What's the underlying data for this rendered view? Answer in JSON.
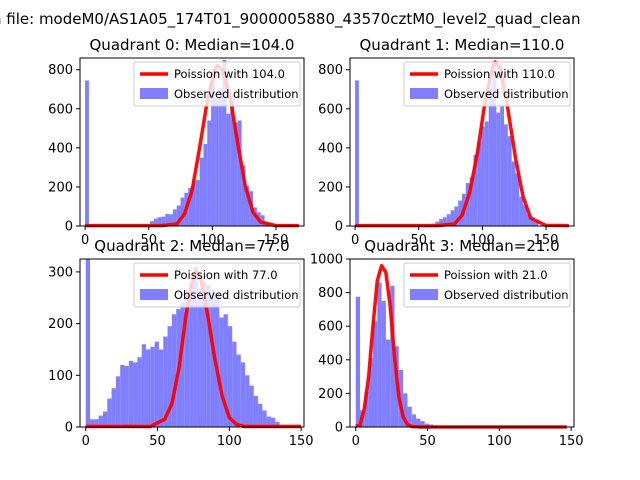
{
  "figure": {
    "suptitle": "n file: modeM0/AS1A05_174T01_9000005880_43570cztM0_level2_quad_clean"
  },
  "colors": {
    "hist": "#7f7fff",
    "fit": "#ff0000"
  },
  "chart_data": [
    {
      "type": "bar",
      "title": "Quadrant 0: Median=104.0",
      "xlim": [
        -4,
        172
      ],
      "ylim": [
        0,
        860
      ],
      "xticks": [
        0,
        50,
        100,
        150
      ],
      "yticks": [
        0,
        200,
        400,
        600,
        800
      ],
      "legend": {
        "position": "top-right",
        "entries": [
          "Poission with 104.0",
          "Observed distribution"
        ]
      },
      "hist_bins": [
        [
          0,
          3,
          745
        ],
        [
          51,
          54,
          25
        ],
        [
          54,
          57,
          38
        ],
        [
          57,
          60,
          45
        ],
        [
          60,
          63,
          48
        ],
        [
          63,
          66,
          62
        ],
        [
          66,
          69,
          60
        ],
        [
          69,
          72,
          85
        ],
        [
          72,
          75,
          105
        ],
        [
          75,
          78,
          145
        ],
        [
          78,
          81,
          170
        ],
        [
          81,
          84,
          195
        ],
        [
          84,
          87,
          232
        ],
        [
          87,
          90,
          235
        ],
        [
          90,
          93,
          350
        ],
        [
          93,
          96,
          420
        ],
        [
          96,
          99,
          540
        ],
        [
          99,
          102,
          790
        ],
        [
          102,
          105,
          655
        ],
        [
          105,
          108,
          705
        ],
        [
          108,
          111,
          850
        ],
        [
          111,
          114,
          575
        ],
        [
          114,
          117,
          655
        ],
        [
          117,
          120,
          530
        ],
        [
          120,
          123,
          540
        ],
        [
          123,
          126,
          310
        ],
        [
          126,
          129,
          205
        ],
        [
          129,
          132,
          178
        ],
        [
          132,
          135,
          95
        ],
        [
          135,
          138,
          70
        ],
        [
          138,
          141,
          55
        ],
        [
          141,
          144,
          20
        ]
      ],
      "fit_curve": {
        "label": "Poission with 104.0",
        "x": [
          0,
          60,
          72,
          78,
          84,
          90,
          96,
          102,
          104,
          108,
          114,
          120,
          126,
          132,
          138,
          150,
          168
        ],
        "y": [
          2,
          2,
          10,
          60,
          180,
          400,
          640,
          800,
          820,
          800,
          660,
          420,
          200,
          70,
          20,
          2,
          2
        ]
      }
    },
    {
      "type": "bar",
      "title": "Quadrant 1: Median=110.0",
      "xlim": [
        -4,
        172
      ],
      "ylim": [
        0,
        860
      ],
      "xticks": [
        0,
        50,
        100,
        150
      ],
      "yticks": [
        0,
        200,
        400,
        600,
        800
      ],
      "legend": {
        "position": "top-right",
        "entries": [
          "Poission with 110.0",
          "Observed distribution"
        ]
      },
      "hist_bins": [
        [
          0,
          3,
          745
        ],
        [
          60,
          63,
          12
        ],
        [
          63,
          66,
          22
        ],
        [
          66,
          69,
          35
        ],
        [
          69,
          72,
          45
        ],
        [
          72,
          75,
          60
        ],
        [
          75,
          78,
          80
        ],
        [
          78,
          81,
          100
        ],
        [
          81,
          84,
          130
        ],
        [
          84,
          87,
          165
        ],
        [
          87,
          90,
          220
        ],
        [
          90,
          93,
          250
        ],
        [
          93,
          96,
          365
        ],
        [
          96,
          99,
          430
        ],
        [
          99,
          102,
          510
        ],
        [
          102,
          105,
          535
        ],
        [
          105,
          108,
          705
        ],
        [
          108,
          111,
          800
        ],
        [
          111,
          114,
          580
        ],
        [
          114,
          117,
          620
        ],
        [
          117,
          120,
          520
        ],
        [
          120,
          123,
          460
        ],
        [
          123,
          126,
          330
        ],
        [
          126,
          129,
          270
        ],
        [
          129,
          132,
          150
        ],
        [
          132,
          135,
          110
        ],
        [
          135,
          138,
          60
        ],
        [
          138,
          141,
          45
        ],
        [
          141,
          144,
          25
        ]
      ],
      "fit_curve": {
        "label": "Poission with 110.0",
        "x": [
          0,
          65,
          78,
          84,
          90,
          96,
          102,
          108,
          110,
          114,
          120,
          126,
          132,
          138,
          150,
          168
        ],
        "y": [
          2,
          2,
          10,
          55,
          170,
          370,
          630,
          810,
          840,
          810,
          600,
          350,
          150,
          40,
          3,
          2
        ]
      }
    },
    {
      "type": "bar",
      "title": "Quadrant 2: Median=77.0",
      "xlim": [
        -4,
        152
      ],
      "ylim": [
        0,
        325
      ],
      "xticks": [
        0,
        50,
        100,
        150
      ],
      "yticks": [
        0,
        100,
        200,
        300
      ],
      "legend": {
        "position": "top-right",
        "entries": [
          "Poission with 77.0",
          "Observed distribution"
        ]
      },
      "hist_bins": [
        [
          0,
          3,
          325
        ],
        [
          3,
          6,
          15
        ],
        [
          6,
          9,
          15
        ],
        [
          9,
          12,
          22
        ],
        [
          12,
          15,
          30
        ],
        [
          15,
          18,
          55
        ],
        [
          18,
          21,
          75
        ],
        [
          21,
          24,
          98
        ],
        [
          24,
          27,
          120
        ],
        [
          27,
          30,
          118
        ],
        [
          30,
          33,
          128
        ],
        [
          33,
          36,
          125
        ],
        [
          36,
          39,
          135
        ],
        [
          39,
          42,
          160
        ],
        [
          42,
          45,
          150
        ],
        [
          45,
          48,
          155
        ],
        [
          48,
          51,
          165
        ],
        [
          51,
          54,
          150
        ],
        [
          54,
          57,
          175
        ],
        [
          57,
          60,
          195
        ],
        [
          60,
          63,
          218
        ],
        [
          63,
          66,
          228
        ],
        [
          66,
          69,
          240
        ],
        [
          69,
          72,
          260
        ],
        [
          72,
          75,
          280
        ],
        [
          75,
          78,
          310
        ],
        [
          78,
          81,
          268
        ],
        [
          81,
          84,
          282
        ],
        [
          84,
          87,
          275
        ],
        [
          87,
          90,
          265
        ],
        [
          90,
          93,
          258
        ],
        [
          93,
          96,
          212
        ],
        [
          96,
          99,
          218
        ],
        [
          99,
          102,
          195
        ],
        [
          102,
          105,
          165
        ],
        [
          105,
          108,
          140
        ],
        [
          108,
          111,
          125
        ],
        [
          111,
          114,
          100
        ],
        [
          114,
          117,
          80
        ],
        [
          117,
          120,
          60
        ],
        [
          120,
          123,
          45
        ],
        [
          123,
          126,
          32
        ],
        [
          126,
          129,
          20
        ],
        [
          129,
          132,
          18
        ],
        [
          132,
          135,
          10
        ]
      ],
      "fit_curve": {
        "label": "Poission with 77.0",
        "x": [
          0,
          45,
          55,
          60,
          65,
          70,
          75,
          77,
          80,
          85,
          90,
          95,
          100,
          105,
          110,
          150
        ],
        "y": [
          1,
          1,
          15,
          45,
          115,
          220,
          290,
          302,
          290,
          215,
          130,
          60,
          18,
          5,
          1,
          1
        ]
      }
    },
    {
      "type": "bar",
      "title": "Quadrant 3: Median=21.0",
      "xlim": [
        -4,
        152
      ],
      "ylim": [
        0,
        1000
      ],
      "xticks": [
        0,
        50,
        100,
        150
      ],
      "yticks": [
        0,
        200,
        400,
        600,
        800,
        1000
      ],
      "legend": {
        "position": "top-right",
        "entries": [
          "Poission with 21.0",
          "Observed distribution"
        ]
      },
      "hist_bins": [
        [
          0,
          3,
          775
        ],
        [
          3,
          6,
          100
        ],
        [
          6,
          9,
          210
        ],
        [
          9,
          12,
          410
        ],
        [
          12,
          15,
          630
        ],
        [
          15,
          18,
          860
        ],
        [
          18,
          21,
          750
        ],
        [
          21,
          24,
          520
        ],
        [
          24,
          27,
          840
        ],
        [
          27,
          30,
          480
        ],
        [
          30,
          33,
          340
        ],
        [
          33,
          36,
          200
        ],
        [
          36,
          39,
          120
        ],
        [
          39,
          42,
          75
        ],
        [
          42,
          45,
          50
        ],
        [
          45,
          48,
          35
        ],
        [
          48,
          51,
          20
        ],
        [
          51,
          54,
          15
        ],
        [
          54,
          57,
          10
        ],
        [
          57,
          60,
          8
        ],
        [
          60,
          63,
          5
        ],
        [
          63,
          66,
          4
        ]
      ],
      "fit_curve": {
        "label": "Poission with 21.0",
        "x": [
          0,
          3,
          6,
          9,
          12,
          15,
          18,
          21,
          24,
          27,
          30,
          33,
          36,
          39,
          45,
          147
        ],
        "y": [
          5,
          10,
          110,
          300,
          600,
          870,
          960,
          920,
          720,
          420,
          180,
          60,
          15,
          3,
          0,
          0
        ]
      }
    }
  ]
}
